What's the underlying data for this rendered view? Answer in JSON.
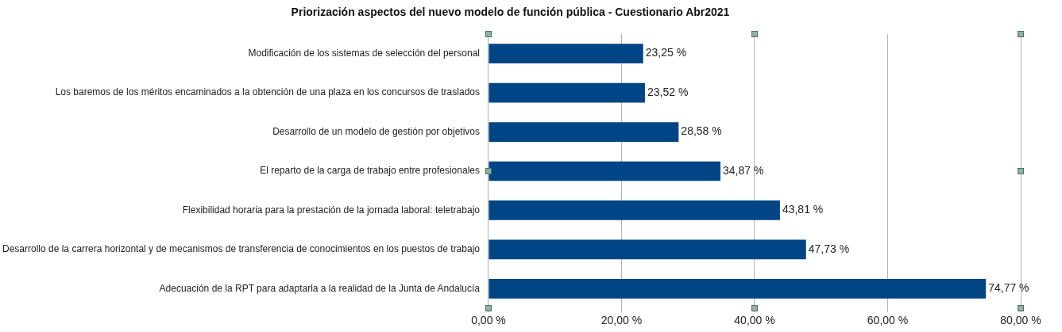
{
  "chart_data": {
    "type": "bar",
    "orientation": "horizontal",
    "title": "Priorización aspectos del nuevo modelo de función pública - Cuestionario Abr2021",
    "categories": [
      "Modificación de los sistemas de selección del personal",
      "Los baremos de los méritos encaminados a la obtención de una plaza en los concursos de traslados",
      "Desarrollo de un modelo de gestión por objetivos",
      "El reparto de la carga de trabajo entre profesionales",
      "Flexibilidad horaria para la prestación de la jornada laboral: teletrabajo",
      "Desarrollo de la carrera horizontal y de mecanismos de transferencia de conocimientos en los puestos de trabajo",
      "Adecuación de la RPT para adaptarla a la realidad de la Junta de Andalucía"
    ],
    "values": [
      23.25,
      23.52,
      28.58,
      34.87,
      43.81,
      47.73,
      74.77
    ],
    "value_labels": [
      "23,25 %",
      "23,52 %",
      "28,58 %",
      "34,87 %",
      "43,81 %",
      "47,73 %",
      "74,77 %"
    ],
    "color": "#004586",
    "xlim": [
      0,
      80
    ],
    "xticks": [
      {
        "value": 0,
        "label": "0,00 %"
      },
      {
        "value": 20,
        "label": "20,00 %"
      },
      {
        "value": 40,
        "label": "40,00 %"
      },
      {
        "value": 60,
        "label": "60,00 %"
      },
      {
        "value": 80,
        "label": "80,00 %"
      }
    ],
    "grid": "x",
    "legend": false
  }
}
